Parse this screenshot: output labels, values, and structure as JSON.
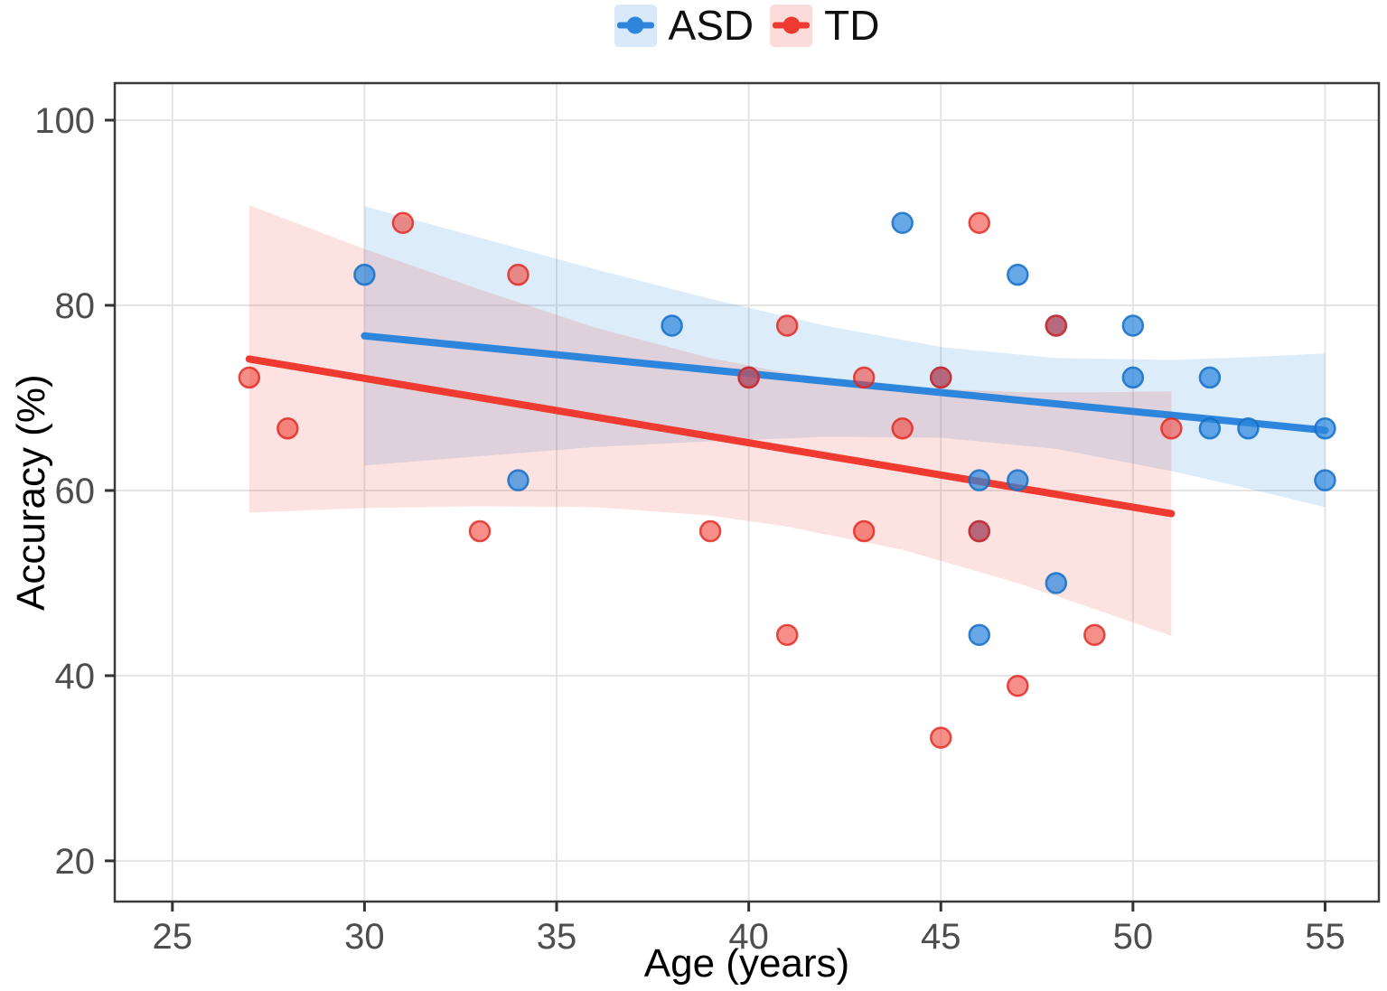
{
  "chart_data": {
    "type": "scatter",
    "title": "",
    "xlabel": "Age (years)",
    "ylabel": "Accuracy (%)",
    "x_ticks": [
      25,
      30,
      35,
      40,
      45,
      50,
      55
    ],
    "y_ticks": [
      20,
      40,
      60,
      80,
      100
    ],
    "xlim": [
      23.5,
      56.4
    ],
    "ylim": [
      15.6,
      104.0
    ],
    "grid": "major-only",
    "legend_position": "top-center",
    "series": [
      {
        "name": "ASD",
        "line_color": "#2E86DC",
        "band_fill": "rgba(46,134,220,0.16)",
        "point_fill": "rgba(45,134,220,0.72)",
        "point_stroke": "rgba(20,110,200,0.85)",
        "legend_key_bg": "#D9E9F8",
        "points": [
          [
            30,
            83.3
          ],
          [
            34,
            61.1
          ],
          [
            38,
            77.8
          ],
          [
            40,
            72.2
          ],
          [
            44,
            88.9
          ],
          [
            45,
            72.2
          ],
          [
            46,
            61.1
          ],
          [
            46,
            55.6
          ],
          [
            46,
            44.4
          ],
          [
            47,
            83.3
          ],
          [
            47,
            61.1
          ],
          [
            48,
            77.8
          ],
          [
            48,
            50.0
          ],
          [
            50,
            77.8
          ],
          [
            50,
            72.2
          ],
          [
            52,
            72.2
          ],
          [
            52,
            66.7
          ],
          [
            53,
            66.7
          ],
          [
            55,
            66.7
          ],
          [
            55,
            61.1
          ]
        ],
        "regression": {
          "x": [
            30,
            55
          ],
          "y": [
            76.7,
            66.5
          ]
        },
        "ci_band": [
          {
            "x": 30,
            "lower": 62.7,
            "upper": 90.7
          },
          {
            "x": 33,
            "lower": 63.7,
            "upper": 87.3
          },
          {
            "x": 36,
            "lower": 64.7,
            "upper": 83.9
          },
          {
            "x": 39,
            "lower": 65.3,
            "upper": 80.7
          },
          {
            "x": 42,
            "lower": 65.8,
            "upper": 77.8
          },
          {
            "x": 45,
            "lower": 65.7,
            "upper": 75.5
          },
          {
            "x": 48,
            "lower": 64.5,
            "upper": 74.3
          },
          {
            "x": 51,
            "lower": 62.1,
            "upper": 74.1
          },
          {
            "x": 53,
            "lower": 60.2,
            "upper": 74.4
          },
          {
            "x": 55,
            "lower": 58.2,
            "upper": 74.8
          }
        ]
      },
      {
        "name": "TD",
        "line_color": "#EE3A30",
        "band_fill": "rgba(238,58,48,0.15)",
        "point_fill": "rgba(240,62,52,0.58)",
        "point_stroke": "rgba(225,35,28,0.80)",
        "legend_key_bg": "#FBDCDA",
        "points": [
          [
            27,
            72.2
          ],
          [
            28,
            66.7
          ],
          [
            31,
            88.9
          ],
          [
            33,
            55.6
          ],
          [
            34,
            83.3
          ],
          [
            39,
            55.6
          ],
          [
            40,
            72.2
          ],
          [
            41,
            77.8
          ],
          [
            41,
            44.4
          ],
          [
            43,
            72.2
          ],
          [
            43,
            55.6
          ],
          [
            44,
            66.7
          ],
          [
            45,
            33.3
          ],
          [
            45,
            72.2
          ],
          [
            46,
            88.9
          ],
          [
            46,
            55.6
          ],
          [
            47,
            38.9
          ],
          [
            48,
            77.8
          ],
          [
            49,
            44.4
          ],
          [
            51,
            66.7
          ]
        ],
        "regression": {
          "x": [
            27,
            51
          ],
          "y": [
            74.2,
            57.5
          ]
        },
        "ci_band": [
          {
            "x": 27,
            "lower": 57.6,
            "upper": 90.8
          },
          {
            "x": 30,
            "lower": 58.1,
            "upper": 86.1
          },
          {
            "x": 33,
            "lower": 58.3,
            "upper": 81.7
          },
          {
            "x": 36,
            "lower": 58.2,
            "upper": 77.6
          },
          {
            "x": 39,
            "lower": 57.3,
            "upper": 74.3
          },
          {
            "x": 41,
            "lower": 56.1,
            "upper": 72.7
          },
          {
            "x": 44,
            "lower": 53.6,
            "upper": 71.2
          },
          {
            "x": 47,
            "lower": 50.0,
            "upper": 70.6
          },
          {
            "x": 49,
            "lower": 47.2,
            "upper": 70.6
          },
          {
            "x": 51,
            "lower": 44.3,
            "upper": 70.7
          }
        ]
      }
    ],
    "colors": {
      "grid": "#E4E4E4",
      "panel_border": "#3A3A3A",
      "tick_mark": "#333333",
      "tick_label": "#4D4D4D",
      "axis_title": "#000000",
      "background": "#FFFFFF"
    }
  },
  "legend": {
    "items": [
      {
        "label": "ASD"
      },
      {
        "label": "TD"
      }
    ]
  }
}
